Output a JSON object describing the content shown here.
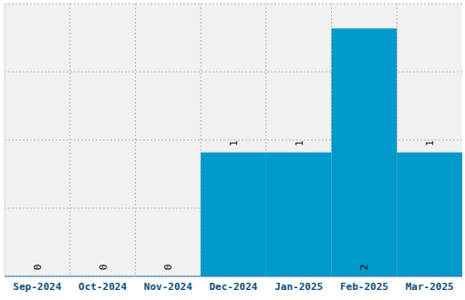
{
  "chart_data": {
    "type": "bar",
    "categories": [
      "Sep-2024",
      "Oct-2024",
      "Nov-2024",
      "Dec-2024",
      "Jan-2025",
      "Feb-2025",
      "Mar-2025"
    ],
    "values": [
      0,
      0,
      0,
      1,
      1,
      2,
      1
    ],
    "color": "#0099cc",
    "ylim": [
      0,
      2.2
    ],
    "yticks": [
      0,
      0.55,
      1.1,
      1.65,
      2.2
    ],
    "grid": true,
    "data_labels": true,
    "tick_labels": "x"
  }
}
